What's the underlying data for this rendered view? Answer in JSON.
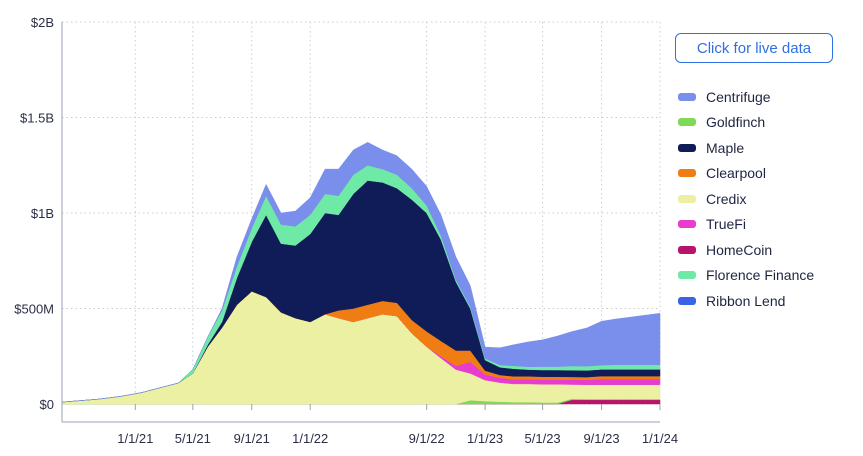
{
  "button": {
    "label": "Click for live data"
  },
  "chart_data": {
    "type": "area",
    "stacked": true,
    "title": "",
    "xlabel": "",
    "ylabel": "",
    "ylim": [
      0,
      2000000000
    ],
    "y_tick_labels": [
      "$0",
      "$500M",
      "$1B",
      "$1.5B",
      "$2B"
    ],
    "y_ticks": [
      0,
      500000000,
      1000000000,
      1500000000,
      2000000000
    ],
    "x_tick_labels": [
      "1/1/21",
      "5/1/21",
      "9/1/21",
      "1/1/22",
      "9/1/22",
      "1/1/23",
      "5/1/23",
      "9/1/23",
      "1/1/24"
    ],
    "x_ticks": [
      "2021-01-01",
      "2021-05-01",
      "2021-09-01",
      "2022-01-01",
      "2022-09-01",
      "2023-01-01",
      "2023-05-01",
      "2023-09-01",
      "2024-01-01"
    ],
    "xlim": [
      "2020-08-01",
      "2024-01-01"
    ],
    "grid": {
      "x": true,
      "y": true,
      "style": "dotted"
    },
    "legend_position": "right",
    "x": [
      "2020-08-01",
      "2020-10-15",
      "2020-12-01",
      "2021-01-15",
      "2021-03-01",
      "2021-04-01",
      "2021-05-01",
      "2021-06-01",
      "2021-07-01",
      "2021-08-01",
      "2021-09-01",
      "2021-10-01",
      "2021-11-01",
      "2021-12-01",
      "2022-01-01",
      "2022-02-01",
      "2022-03-01",
      "2022-04-01",
      "2022-05-01",
      "2022-06-01",
      "2022-07-01",
      "2022-08-01",
      "2022-09-01",
      "2022-10-01",
      "2022-11-01",
      "2022-12-01",
      "2023-01-01",
      "2023-02-01",
      "2023-03-01",
      "2023-04-01",
      "2023-05-01",
      "2023-06-01",
      "2023-07-01",
      "2023-08-01",
      "2023-09-01",
      "2023-10-01",
      "2023-11-01",
      "2023-12-01",
      "2024-01-01"
    ],
    "series": [
      {
        "name": "Ribbon Lend",
        "color": "#3b63e6",
        "values": [
          0,
          0,
          0,
          0,
          0,
          0,
          0,
          0,
          0,
          0,
          0,
          0,
          0,
          0,
          0,
          0,
          0,
          0,
          0,
          0,
          0,
          0,
          0,
          0,
          0,
          0,
          0,
          0,
          0,
          0,
          0,
          0,
          0,
          0,
          0,
          0,
          0,
          0,
          0
        ]
      },
      {
        "name": "HomeCoin",
        "color": "#b8146c",
        "values": [
          0,
          0,
          0,
          0,
          0,
          0,
          0,
          0,
          0,
          0,
          0,
          0,
          0,
          0,
          0,
          0,
          0,
          0,
          0,
          0,
          0,
          0,
          0,
          0,
          0,
          0,
          0,
          0,
          0,
          0,
          0,
          0,
          22000000,
          22000000,
          22000000,
          22000000,
          22000000,
          22000000,
          22000000
        ]
      },
      {
        "name": "Goldfinch",
        "color": "#7ed957",
        "values": [
          0,
          0,
          0,
          0,
          0,
          0,
          0,
          0,
          0,
          0,
          0,
          0,
          0,
          0,
          0,
          0,
          0,
          0,
          0,
          0,
          0,
          0,
          0,
          0,
          0,
          20000000,
          15000000,
          12000000,
          10000000,
          10000000,
          8000000,
          8000000,
          5000000,
          4000000,
          4000000,
          4000000,
          4000000,
          4000000,
          4000000
        ]
      },
      {
        "name": "Credix",
        "color": "#ecf0a2",
        "values": [
          10000000,
          25000000,
          40000000,
          60000000,
          90000000,
          110000000,
          160000000,
          300000000,
          400000000,
          520000000,
          590000000,
          560000000,
          480000000,
          450000000,
          430000000,
          470000000,
          450000000,
          430000000,
          450000000,
          470000000,
          460000000,
          370000000,
          300000000,
          240000000,
          180000000,
          140000000,
          110000000,
          100000000,
          95000000,
          95000000,
          95000000,
          95000000,
          75000000,
          75000000,
          75000000,
          75000000,
          75000000,
          75000000,
          75000000
        ]
      },
      {
        "name": "TrueFi",
        "color": "#e83ccf",
        "values": [
          0,
          0,
          0,
          0,
          0,
          0,
          0,
          0,
          0,
          0,
          0,
          0,
          0,
          0,
          0,
          0,
          0,
          0,
          0,
          0,
          0,
          0,
          0,
          10000000,
          20000000,
          60000000,
          30000000,
          25000000,
          25000000,
          25000000,
          25000000,
          25000000,
          25000000,
          25000000,
          30000000,
          30000000,
          30000000,
          30000000,
          30000000
        ]
      },
      {
        "name": "Clearpool",
        "color": "#f07d14",
        "values": [
          0,
          0,
          0,
          0,
          0,
          0,
          0,
          0,
          0,
          0,
          0,
          0,
          0,
          0,
          0,
          0,
          40000000,
          70000000,
          70000000,
          70000000,
          70000000,
          70000000,
          80000000,
          80000000,
          80000000,
          60000000,
          20000000,
          15000000,
          15000000,
          15000000,
          15000000,
          15000000,
          15000000,
          15000000,
          15000000,
          15000000,
          15000000,
          15000000,
          15000000
        ]
      },
      {
        "name": "Maple",
        "color": "#0f1c57",
        "values": [
          0,
          0,
          0,
          0,
          0,
          0,
          0,
          10000000,
          30000000,
          140000000,
          260000000,
          430000000,
          360000000,
          380000000,
          460000000,
          530000000,
          500000000,
          600000000,
          650000000,
          620000000,
          600000000,
          630000000,
          620000000,
          530000000,
          360000000,
          220000000,
          55000000,
          40000000,
          40000000,
          35000000,
          35000000,
          35000000,
          35000000,
          35000000,
          35000000,
          35000000,
          35000000,
          35000000,
          35000000
        ]
      },
      {
        "name": "Florence Finance",
        "color": "#6feaa6",
        "values": [
          0,
          0,
          0,
          0,
          0,
          0,
          20000000,
          40000000,
          60000000,
          60000000,
          70000000,
          100000000,
          100000000,
          100000000,
          100000000,
          100000000,
          100000000,
          100000000,
          80000000,
          70000000,
          70000000,
          60000000,
          40000000,
          20000000,
          10000000,
          10000000,
          8000000,
          12000000,
          15000000,
          15000000,
          18000000,
          18000000,
          22000000,
          22000000,
          22000000,
          24000000,
          24000000,
          24000000,
          24000000
        ]
      },
      {
        "name": "Centrifuge",
        "color": "#7a8fec",
        "values": [
          0,
          0,
          0,
          0,
          0,
          0,
          0,
          0,
          10000000,
          50000000,
          50000000,
          60000000,
          60000000,
          80000000,
          90000000,
          130000000,
          140000000,
          130000000,
          120000000,
          100000000,
          100000000,
          100000000,
          100000000,
          110000000,
          120000000,
          110000000,
          60000000,
          90000000,
          110000000,
          130000000,
          140000000,
          160000000,
          180000000,
          200000000,
          230000000,
          240000000,
          250000000,
          260000000,
          270000000
        ]
      }
    ]
  },
  "legend": [
    {
      "label": "Centrifuge",
      "color": "#7a8fec"
    },
    {
      "label": "Goldfinch",
      "color": "#7ed957"
    },
    {
      "label": "Maple",
      "color": "#0f1c57"
    },
    {
      "label": "Clearpool",
      "color": "#f07d14"
    },
    {
      "label": "Credix",
      "color": "#ecf0a2"
    },
    {
      "label": "TrueFi",
      "color": "#e83ccf"
    },
    {
      "label": "HomeCoin",
      "color": "#b8146c"
    },
    {
      "label": "Florence Finance",
      "color": "#6feaa6"
    },
    {
      "label": "Ribbon Lend",
      "color": "#3b63e6"
    }
  ]
}
